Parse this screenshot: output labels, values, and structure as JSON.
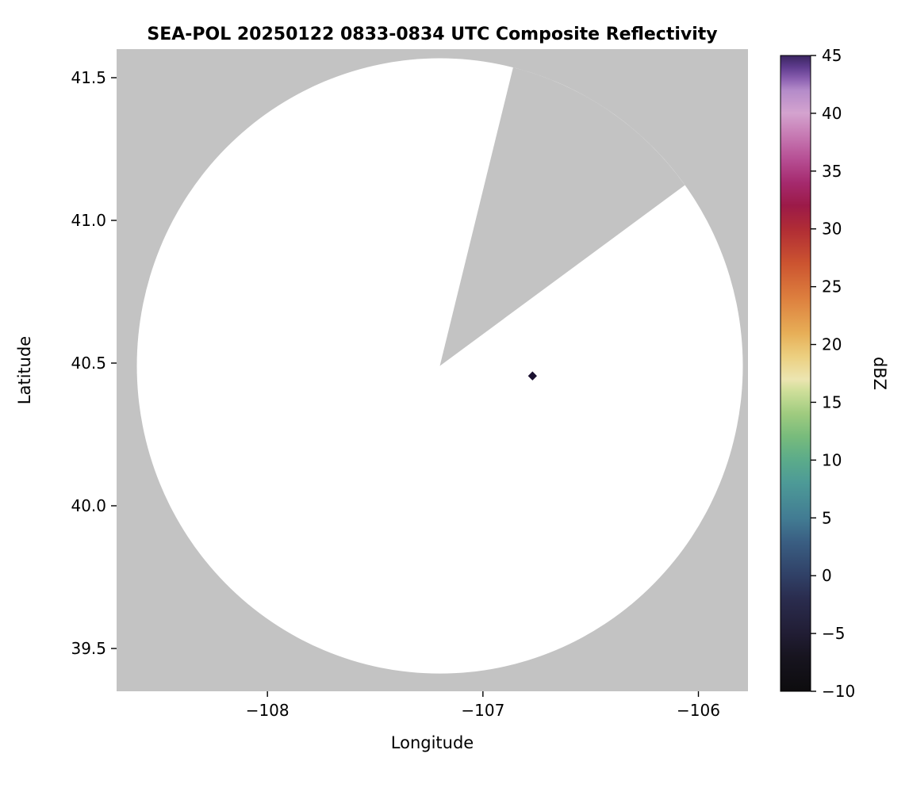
{
  "figure": {
    "background": "#ffffff",
    "outside_color": "#c3c3c3"
  },
  "chart_data": {
    "type": "heatmap",
    "title": "SEA-POL 20250122 0833-0834 UTC Composite Reflectivity",
    "xlabel": "Longitude",
    "ylabel": "Latitude",
    "xlim": [
      -108.7,
      -105.77
    ],
    "ylim": [
      39.35,
      41.6
    ],
    "xticks": [
      -108,
      -107,
      -106
    ],
    "yticks": [
      39.5,
      40.0,
      40.5,
      41.0,
      41.5
    ],
    "grid": false,
    "legend": "none",
    "nodata_color": "#c3c3c3",
    "coverage": {
      "description": "white circular radar coverage area centered on the radar; nearly echo-free",
      "center_lon": -107.2,
      "center_lat": 40.49,
      "radius_deg_lon": 1.406,
      "radius_deg_lat": 1.078,
      "fill": "#ffffff"
    },
    "blocked_sector": {
      "description": "gray wedge of missing data extending from the radar center to the northeast",
      "azimuth_start_deg": 14,
      "azimuth_end_deg": 54,
      "fill": "#c3c3c3"
    },
    "echoes": [
      {
        "lon": -106.77,
        "lat": 40.455,
        "value_dbz": 45,
        "color": "#1b1130"
      }
    ],
    "colorbar": {
      "label": "dBZ",
      "min": -10,
      "max": 45,
      "ticks": [
        -10,
        -5,
        0,
        5,
        10,
        15,
        20,
        25,
        30,
        35,
        40,
        45
      ],
      "stops": [
        {
          "v": -10,
          "c": "#0d0c0e"
        },
        {
          "v": -7,
          "c": "#17141f"
        },
        {
          "v": -5,
          "c": "#211d34"
        },
        {
          "v": -2,
          "c": "#2a2c4e"
        },
        {
          "v": 0,
          "c": "#304066"
        },
        {
          "v": 3,
          "c": "#3a5f83"
        },
        {
          "v": 5,
          "c": "#427c93"
        },
        {
          "v": 8,
          "c": "#4d9a97"
        },
        {
          "v": 10,
          "c": "#5bab8a"
        },
        {
          "v": 12,
          "c": "#77bb7c"
        },
        {
          "v": 14,
          "c": "#9fcb7f"
        },
        {
          "v": 16,
          "c": "#cfdf9a"
        },
        {
          "v": 17,
          "c": "#ece5b1"
        },
        {
          "v": 19,
          "c": "#eccf7f"
        },
        {
          "v": 21,
          "c": "#e7ae57"
        },
        {
          "v": 24,
          "c": "#dd7f3e"
        },
        {
          "v": 27,
          "c": "#cc5430"
        },
        {
          "v": 30,
          "c": "#b02c35"
        },
        {
          "v": 32,
          "c": "#9c1a48"
        },
        {
          "v": 34,
          "c": "#a52a6e"
        },
        {
          "v": 36,
          "c": "#b64e93"
        },
        {
          "v": 38,
          "c": "#c678b2"
        },
        {
          "v": 40,
          "c": "#d4a3cf"
        },
        {
          "v": 42,
          "c": "#b48bc9"
        },
        {
          "v": 43,
          "c": "#8a5fb0"
        },
        {
          "v": 44,
          "c": "#5f3c8e"
        },
        {
          "v": 45,
          "c": "#3a2560"
        }
      ]
    }
  }
}
